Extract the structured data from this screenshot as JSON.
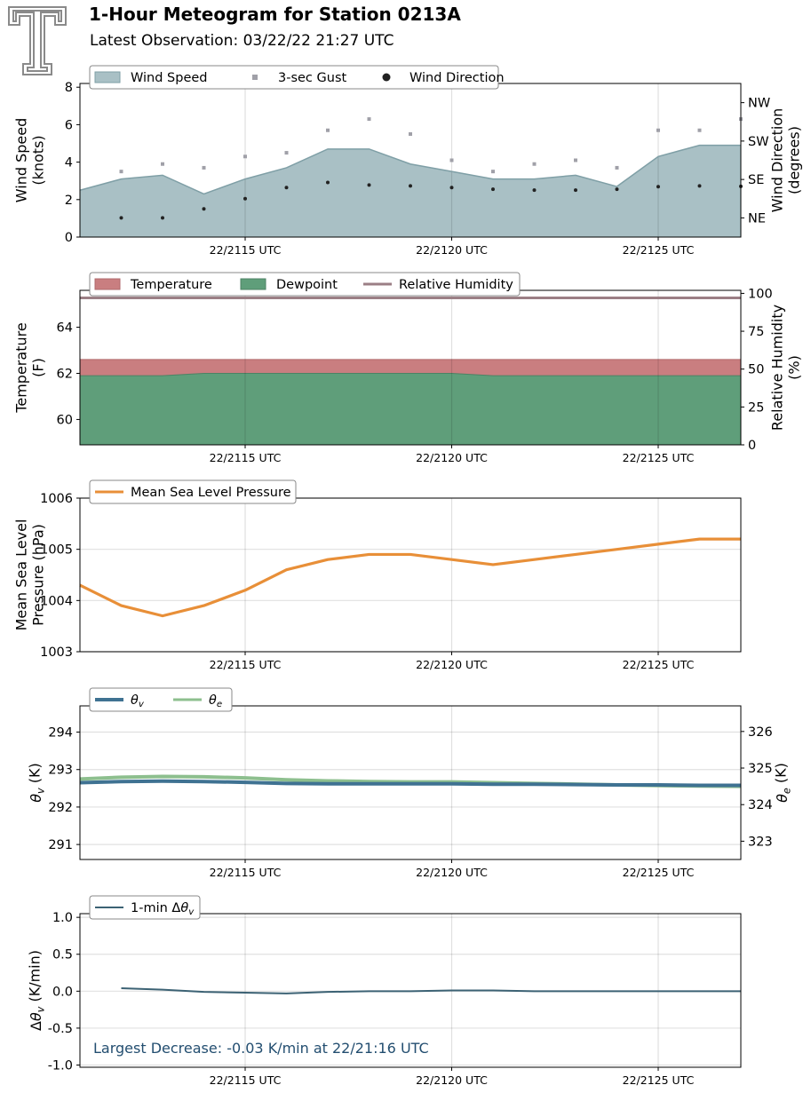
{
  "header": {
    "title": "1-Hour Meteogram for Station 0213A",
    "subtitle": "Latest Observation: 03/22/22 21:27 UTC"
  },
  "colors": {
    "wind_fill": "#a9c0c5",
    "wind_line": "#7f9fa6",
    "gust": "#a0a0a8",
    "direction": "#222222",
    "temperature": "#c97e80",
    "dewpoint": "#5f9e7a",
    "rh": "#9b7f85",
    "pressure": "#e88f38",
    "theta_v": "#3f7292",
    "theta_e": "#8dbf8e",
    "dtheta": "#3c6274",
    "annotation": "#234e70"
  },
  "x_axis": {
    "ticks": [
      {
        "value": 15,
        "label": "22/2115 UTC"
      },
      {
        "value": 20,
        "label": "22/2120 UTC"
      },
      {
        "value": 25,
        "label": "22/2125 UTC"
      }
    ],
    "range": [
      11,
      27
    ]
  },
  "chart_data": [
    {
      "type": "area",
      "panel": "wind",
      "legend": [
        "Wind Speed",
        "3-sec Gust",
        "Wind Direction"
      ],
      "ylabel": [
        "Wind Speed",
        "(knots)"
      ],
      "ylim": [
        0,
        8.2
      ],
      "yticks": [
        0,
        2,
        4,
        6,
        8
      ],
      "y2label": [
        "Wind Direction",
        "(degrees)"
      ],
      "y2ticks": [
        {
          "value": 45,
          "label": "NE"
        },
        {
          "value": 135,
          "label": "SE"
        },
        {
          "value": 225,
          "label": "SW"
        },
        {
          "value": 315,
          "label": "NW"
        }
      ],
      "y2lim": [
        0,
        360
      ],
      "grid": true,
      "legend_position": "top-left",
      "x": [
        11,
        12,
        13,
        14,
        15,
        16,
        17,
        18,
        19,
        20,
        21,
        22,
        23,
        24,
        25,
        26,
        27
      ],
      "series": [
        {
          "name": "Wind Speed",
          "values": [
            2.5,
            3.1,
            3.3,
            2.3,
            3.1,
            3.7,
            4.7,
            4.7,
            3.9,
            3.5,
            3.1,
            3.1,
            3.3,
            2.7,
            4.3,
            4.9,
            4.9
          ]
        },
        {
          "name": "3-sec Gust",
          "values": [
            null,
            3.5,
            3.9,
            3.7,
            4.3,
            4.5,
            5.7,
            6.3,
            5.5,
            4.1,
            3.5,
            3.9,
            4.1,
            3.7,
            5.7,
            5.7,
            6.3
          ]
        },
        {
          "name": "Wind Direction",
          "values": [
            null,
            45,
            45,
            66,
            90,
            116,
            128,
            122,
            120,
            116,
            112,
            110,
            110,
            112,
            118,
            120,
            119
          ]
        }
      ]
    },
    {
      "type": "area",
      "panel": "thermo",
      "legend": [
        "Temperature",
        "Dewpoint",
        "Relative Humidity"
      ],
      "ylabel": [
        "Temperature",
        "(F)"
      ],
      "ylim": [
        58.9,
        65.6
      ],
      "yticks": [
        60,
        62,
        64
      ],
      "y2label": [
        "Relative Humidity",
        "(%)"
      ],
      "y2lim": [
        0,
        102
      ],
      "y2ticks": [
        0,
        25,
        50,
        75,
        100
      ],
      "grid": true,
      "legend_position": "top-left",
      "x": [
        11,
        12,
        13,
        14,
        15,
        16,
        17,
        18,
        19,
        20,
        21,
        22,
        23,
        24,
        25,
        26,
        27
      ],
      "series": [
        {
          "name": "Temperature",
          "values": [
            62.6,
            62.6,
            62.6,
            62.6,
            62.6,
            62.6,
            62.6,
            62.6,
            62.6,
            62.6,
            62.6,
            62.6,
            62.6,
            62.6,
            62.6,
            62.6,
            62.6
          ]
        },
        {
          "name": "Dewpoint",
          "values": [
            61.9,
            61.9,
            61.9,
            62.0,
            62.0,
            62.0,
            62.0,
            62.0,
            62.0,
            62.0,
            61.9,
            61.9,
            61.9,
            61.9,
            61.9,
            61.9,
            61.9
          ]
        },
        {
          "name": "Relative Humidity",
          "values": [
            97,
            97,
            97,
            97,
            97,
            97,
            97,
            97,
            97,
            97,
            97,
            97,
            97,
            97,
            97,
            97,
            97
          ]
        }
      ]
    },
    {
      "type": "line",
      "panel": "pressure",
      "legend": [
        "Mean Sea Level Pressure"
      ],
      "ylabel": [
        "Mean Sea Level",
        "Pressure (hPa)"
      ],
      "ylim": [
        1003,
        1006
      ],
      "yticks": [
        1003,
        1004,
        1005,
        1006
      ],
      "grid": true,
      "legend_position": "top-left",
      "x": [
        11,
        12,
        13,
        14,
        15,
        16,
        17,
        18,
        19,
        20,
        21,
        22,
        23,
        24,
        25,
        26,
        27
      ],
      "series": [
        {
          "name": "Mean Sea Level Pressure",
          "values": [
            1004.3,
            1003.9,
            1003.7,
            1003.9,
            1004.2,
            1004.6,
            1004.8,
            1004.9,
            1004.9,
            1004.8,
            1004.7,
            1004.8,
            1004.9,
            1005.0,
            1005.1,
            1005.2,
            1005.2
          ]
        }
      ]
    },
    {
      "type": "line",
      "panel": "theta",
      "legend": [
        "θv",
        "θe"
      ],
      "ylabel": [
        "θv (K)"
      ],
      "ylim": [
        290.6,
        294.7
      ],
      "yticks": [
        291,
        292,
        293,
        294
      ],
      "y2label": [
        "θe (K)"
      ],
      "y2lim": [
        322.5,
        326.7
      ],
      "y2ticks": [
        323,
        324,
        325,
        326
      ],
      "grid": true,
      "legend_position": "top-left",
      "x": [
        11,
        12,
        13,
        14,
        15,
        16,
        17,
        18,
        19,
        20,
        21,
        22,
        23,
        24,
        25,
        26,
        27
      ],
      "series": [
        {
          "name": "θv",
          "values": [
            292.65,
            292.68,
            292.69,
            292.68,
            292.66,
            292.63,
            292.62,
            292.62,
            292.62,
            292.62,
            292.61,
            292.61,
            292.6,
            292.59,
            292.59,
            292.58,
            292.58
          ]
        },
        {
          "name": "θe",
          "values": [
            324.7,
            324.75,
            324.77,
            324.76,
            324.73,
            324.68,
            324.65,
            324.63,
            324.62,
            324.62,
            324.6,
            324.58,
            324.56,
            324.54,
            324.52,
            324.51,
            324.5
          ]
        }
      ]
    },
    {
      "type": "line",
      "panel": "dtheta",
      "legend": [
        "1-min Δθv"
      ],
      "ylabel": [
        "Δθv (K/min)"
      ],
      "ylim": [
        -1.03,
        1.05
      ],
      "yticks": [
        -1.0,
        -0.5,
        0.0,
        0.5,
        1.0
      ],
      "grid": true,
      "legend_position": "top-left",
      "annotation": "Largest Decrease: -0.03 K/min at 22/21:16 UTC",
      "x": [
        12,
        13,
        14,
        15,
        16,
        17,
        18,
        19,
        20,
        21,
        22,
        23,
        24,
        25,
        26,
        27
      ],
      "series": [
        {
          "name": "1-min Δθv",
          "values": [
            0.04,
            0.02,
            -0.01,
            -0.02,
            -0.03,
            -0.01,
            0.0,
            0.0,
            0.01,
            0.01,
            0.0,
            0.0,
            0.0,
            0.0,
            0.0,
            0.0
          ]
        }
      ]
    }
  ]
}
